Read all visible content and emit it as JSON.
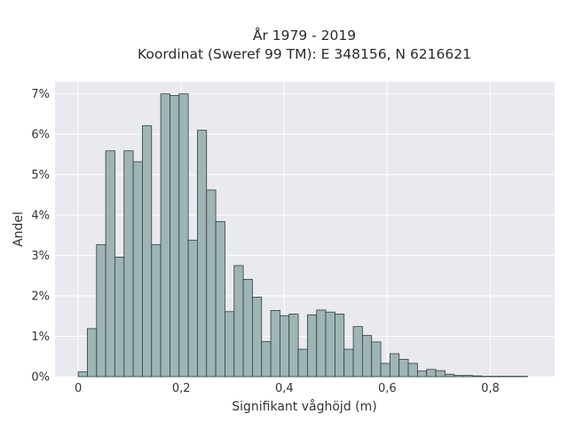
{
  "chart_data": {
    "type": "bar",
    "title_line1": "År 1979 - 2019",
    "title_line2": "Koordinat (Sweref 99 TM): E 348156, N 6216621",
    "xlabel": "Signifikant våghöjd (m)",
    "ylabel": "Andel",
    "xlim": [
      -0.045,
      0.925
    ],
    "ylim": [
      0,
      7.3
    ],
    "bin_width": 0.0178,
    "x_ticks": [
      0,
      0.2,
      0.4,
      0.6,
      0.8
    ],
    "x_tick_labels": [
      "0",
      "0,2",
      "0,4",
      "0,6",
      "0,8"
    ],
    "y_ticks": [
      0,
      1,
      2,
      3,
      4,
      5,
      6,
      7
    ],
    "y_tick_labels": [
      "0%",
      "1%",
      "2%",
      "3%",
      "4%",
      "5%",
      "6%",
      "7%"
    ],
    "bins_start": [
      0.0,
      0.0178,
      0.0356,
      0.0534,
      0.0712,
      0.089,
      0.1068,
      0.1246,
      0.1424,
      0.1602,
      0.178,
      0.1958,
      0.2136,
      0.2314,
      0.2492,
      0.267,
      0.2848,
      0.3026,
      0.3204,
      0.3382,
      0.356,
      0.3738,
      0.3916,
      0.4094,
      0.4272,
      0.445,
      0.4628,
      0.4806,
      0.4984,
      0.5162,
      0.534,
      0.5518,
      0.5696,
      0.5874,
      0.6052,
      0.623,
      0.6408,
      0.6586,
      0.6764,
      0.6942,
      0.712,
      0.7298,
      0.7476,
      0.7654,
      0.7832,
      0.801,
      0.8188,
      0.8366,
      0.8544
    ],
    "values": [
      0.12,
      1.19,
      3.27,
      5.59,
      2.96,
      5.59,
      5.32,
      6.21,
      3.27,
      7.0,
      6.96,
      7.0,
      3.38,
      6.1,
      4.62,
      3.84,
      1.61,
      2.75,
      2.41,
      1.97,
      0.87,
      1.64,
      1.51,
      1.55,
      0.68,
      1.53,
      1.65,
      1.6,
      1.55,
      0.68,
      1.24,
      1.02,
      0.86,
      0.33,
      0.57,
      0.43,
      0.33,
      0.14,
      0.18,
      0.15,
      0.06,
      0.03,
      0.03,
      0.02,
      0.01,
      0.01,
      0.01,
      0.01,
      0.01
    ],
    "bar_color": "#9fb5b5",
    "bar_edge_color": "#2f3f3f",
    "plot_bg": "#e9e9f0",
    "grid_color": "#ffffff",
    "grid": true
  }
}
